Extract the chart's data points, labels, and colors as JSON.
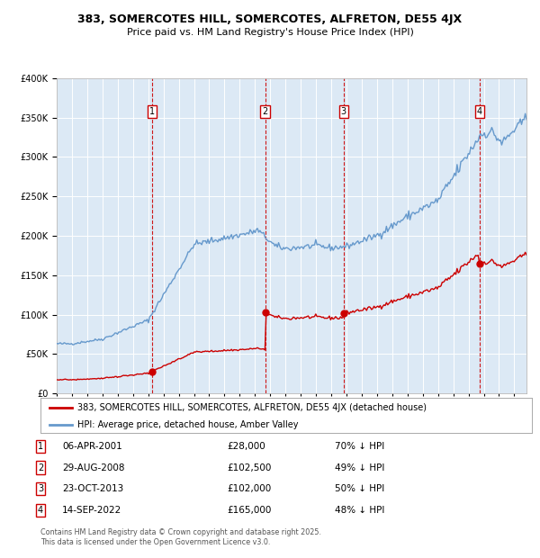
{
  "title_line1": "383, SOMERCOTES HILL, SOMERCOTES, ALFRETON, DE55 4JX",
  "title_line2": "Price paid vs. HM Land Registry's House Price Index (HPI)",
  "legend_label_red": "383, SOMERCOTES HILL, SOMERCOTES, ALFRETON, DE55 4JX (detached house)",
  "legend_label_blue": "HPI: Average price, detached house, Amber Valley",
  "footer_line1": "Contains HM Land Registry data © Crown copyright and database right 2025.",
  "footer_line2": "This data is licensed under the Open Government Licence v3.0.",
  "transactions": [
    {
      "num": 1,
      "date": "06-APR-2001",
      "price": 28000,
      "price_str": "£28,000",
      "pct": "70% ↓ HPI"
    },
    {
      "num": 2,
      "date": "29-AUG-2008",
      "price": 102500,
      "price_str": "£102,500",
      "pct": "49% ↓ HPI"
    },
    {
      "num": 3,
      "date": "23-OCT-2013",
      "price": 102000,
      "price_str": "£102,000",
      "pct": "50% ↓ HPI"
    },
    {
      "num": 4,
      "date": "14-SEP-2022",
      "price": 165000,
      "price_str": "£165,000",
      "pct": "48% ↓ HPI"
    }
  ],
  "transaction_dates_decimal": [
    2001.27,
    2008.66,
    2013.81,
    2022.71
  ],
  "transaction_prices": [
    28000,
    102500,
    102000,
    165000
  ],
  "bg_color": "#dce9f5",
  "red_color": "#cc0000",
  "blue_color": "#6699cc",
  "grid_color": "#ffffff",
  "ylim": [
    0,
    400000
  ],
  "xlim_start": 1995.0,
  "xlim_end": 2025.8
}
